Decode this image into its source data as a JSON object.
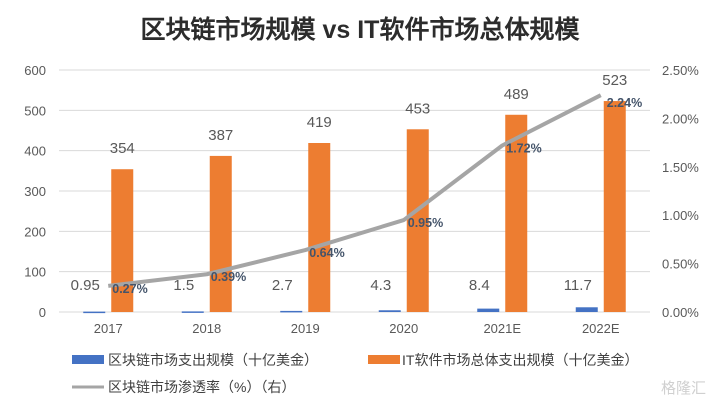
{
  "chart_data": {
    "type": "bar+line",
    "title": "区块链市场规模 vs IT软件市场总体规模",
    "categories": [
      "2017",
      "2018",
      "2019",
      "2020",
      "2021E",
      "2022E"
    ],
    "series": [
      {
        "name": "区块链市场支出规模（十亿美金）",
        "type": "bar",
        "axis": "left",
        "color": "#4472c4",
        "values": [
          0.95,
          1.5,
          2.7,
          4.3,
          8.4,
          11.7
        ],
        "labels": [
          "0.95",
          "1.5",
          "2.7",
          "4.3",
          "8.4",
          "11.7"
        ]
      },
      {
        "name": "IT软件市场总体支出规模（十亿美金）",
        "type": "bar",
        "axis": "left",
        "color": "#ed7d31",
        "values": [
          354,
          387,
          419,
          453,
          489,
          523
        ],
        "labels": [
          "354",
          "387",
          "419",
          "453",
          "489",
          "523"
        ]
      },
      {
        "name": "区块链市场渗透率（%）（右）",
        "type": "line",
        "axis": "right",
        "color": "#a5a5a5",
        "values": [
          0.27,
          0.39,
          0.64,
          0.95,
          1.72,
          2.24
        ],
        "labels": [
          "0.27%",
          "0.39%",
          "0.64%",
          "0.95%",
          "1.72%",
          "2.24%"
        ]
      }
    ],
    "left_axis": {
      "ylim": [
        0,
        600
      ],
      "ticks": [
        "0",
        "100",
        "200",
        "300",
        "400",
        "500",
        "600"
      ]
    },
    "right_axis": {
      "ylim": [
        0,
        2.5
      ],
      "ticks": [
        "0.00%",
        "0.50%",
        "1.00%",
        "1.50%",
        "2.00%",
        "2.50%"
      ]
    },
    "grid": true,
    "legend": "bottom"
  },
  "watermark": "格隆汇"
}
